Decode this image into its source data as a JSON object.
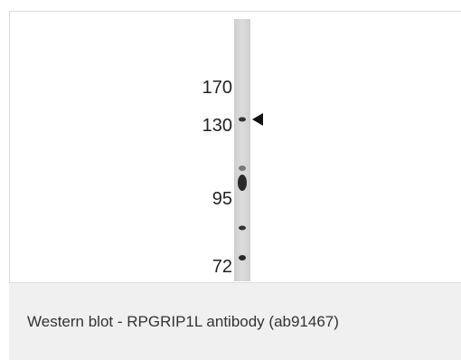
{
  "figure": {
    "markers": [
      170,
      130,
      95,
      72
    ]
  },
  "caption": "Western blot - RPGRIP1L antibody (ab91467)"
}
